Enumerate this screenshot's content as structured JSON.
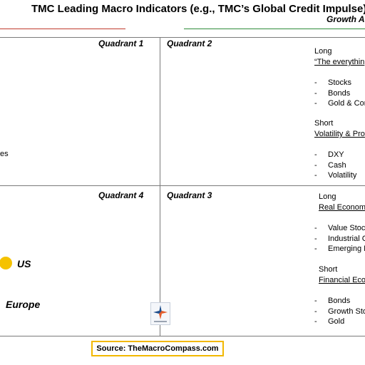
{
  "title": "TMC Leading Macro Indicators (e.g., TMC’s Global Credit Impulse)",
  "growth_label": "Growth A",
  "quadrants": {
    "q1": "Quadrant 1",
    "q2": "Quadrant 2",
    "q3": "Quadrant 3",
    "q4": "Quadrant 4"
  },
  "q2_panel": {
    "long_label": "Long",
    "long_theme": "“The everythin",
    "long_items": [
      "Stocks",
      "Bonds",
      "Gold & Com"
    ],
    "short_label": "Short",
    "short_theme": "Volatility & Pro",
    "short_items": [
      "DXY",
      "Cash",
      "Volatility"
    ]
  },
  "q1_fragment": "es",
  "q3_panel": {
    "long_label": "Long",
    "long_theme": "Real Econom",
    "long_items": [
      "Value Stoc",
      "Industrial C",
      "Emerging M"
    ],
    "short_label": "Short",
    "short_theme": "Financial Econ",
    "short_items": [
      "Bonds",
      "Growth Sto",
      "Gold"
    ]
  },
  "regions": {
    "us": "US",
    "europe": "Europe"
  },
  "colors": {
    "us_dot": "#f5c200",
    "left_rule": "#c0392b",
    "right_rule": "#2e8b3a",
    "source_border": "#f2b800"
  },
  "source": "Source: TheMacroCompass.com",
  "logo_icon": "macro-compass-logo"
}
